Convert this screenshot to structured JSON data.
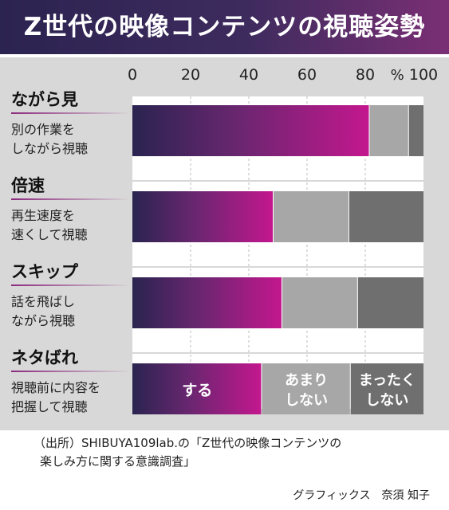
{
  "title": "Z世代の映像コンテンツの視聴姿勢",
  "chart_data": {
    "type": "bar",
    "stacked": true,
    "orientation": "horizontal",
    "xlim": [
      0,
      100
    ],
    "x_ticks": [
      "0",
      "20",
      "40",
      "60",
      "80",
      "100"
    ],
    "x_unit": "%",
    "grid": true,
    "categories": [
      {
        "name": "ながら見",
        "desc": [
          "別の作業を",
          "しながら視聴"
        ]
      },
      {
        "name": "倍速",
        "desc": [
          "再生速度を",
          "速くして視聴"
        ]
      },
      {
        "name": "スキップ",
        "desc": [
          "話を飛ばし",
          "ながら視聴"
        ]
      },
      {
        "name": "ネタばれ",
        "desc": [
          "視聴前に内容を",
          "把握して視聴"
        ]
      }
    ],
    "series": [
      {
        "name": "する",
        "values": [
          81.5,
          48.5,
          51.5,
          44.5
        ],
        "color": "#b61a8a"
      },
      {
        "name": "あまりしない",
        "values": [
          13.5,
          26,
          26,
          30.5
        ],
        "color": "#a7a7a7"
      },
      {
        "name": "まったくしない",
        "values": [
          5,
          25.5,
          22.5,
          25
        ],
        "color": "#6f6f6f"
      }
    ],
    "series_labels": [
      "する",
      "あまり",
      "しない",
      "まったく",
      "しない"
    ]
  },
  "source": [
    "（出所）SHIBUYA109lab.の「Z世代の映像コンテンツの",
    "楽しみ方に関する意識調査」"
  ],
  "credit": "グラフィックス　奈須 知子"
}
